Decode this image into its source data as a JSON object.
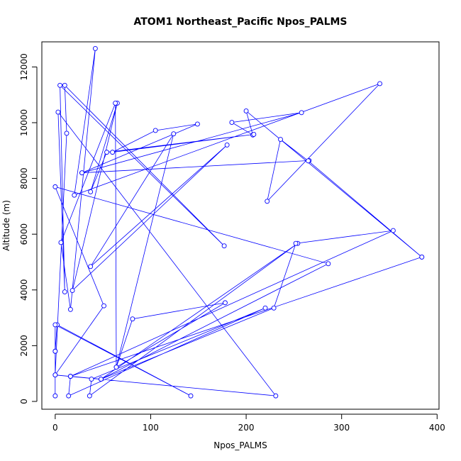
{
  "chart_data": {
    "type": "line",
    "title": "ATOM1 Northeast_Pacific Npos_PALMS",
    "xlabel": "Npos_PALMS",
    "ylabel": "Altitude (m)",
    "xlim": [
      -14,
      402
    ],
    "ylim": [
      -280,
      12900
    ],
    "x_ticks": [
      0,
      100,
      200,
      300,
      400
    ],
    "y_ticks": [
      0,
      2000,
      4000,
      6000,
      8000,
      10000,
      12000
    ],
    "line_color": "#0000ff",
    "marker": "open-circle",
    "series": [
      {
        "points": [
          [
            0,
            200
          ],
          [
            0,
            1800
          ],
          [
            2,
            2750
          ],
          [
            142,
            200
          ],
          [
            0,
            2750
          ],
          [
            0,
            1800
          ],
          [
            0,
            950
          ],
          [
            231,
            200
          ],
          [
            3,
            10380
          ],
          [
            10,
            3930
          ],
          [
            5,
            11340
          ],
          [
            177,
            5580
          ],
          [
            10,
            11340
          ],
          [
            12,
            9620
          ],
          [
            0,
            950
          ],
          [
            51,
            3430
          ],
          [
            0,
            7700
          ],
          [
            286,
            4940
          ],
          [
            48,
            800
          ],
          [
            254,
            5670
          ],
          [
            36,
            200
          ],
          [
            38,
            800
          ],
          [
            220,
            3350
          ],
          [
            14,
            200
          ],
          [
            16,
            900
          ],
          [
            48,
            800
          ],
          [
            229,
            3350
          ],
          [
            252,
            5670
          ],
          [
            354,
            6130
          ],
          [
            16,
            900
          ],
          [
            384,
            5180
          ],
          [
            200,
            10420
          ],
          [
            207,
            9560
          ],
          [
            185,
            10010
          ],
          [
            258,
            10360
          ],
          [
            28,
            8200
          ],
          [
            266,
            8640
          ],
          [
            28,
            8200
          ],
          [
            149,
            9950
          ],
          [
            105,
            9720
          ],
          [
            60,
            8940
          ],
          [
            208,
            9580
          ],
          [
            54,
            8940
          ],
          [
            37,
            7520
          ],
          [
            65,
            10700
          ],
          [
            18,
            3980
          ],
          [
            180,
            9200
          ],
          [
            37,
            4840
          ],
          [
            124,
            9600
          ],
          [
            64,
            1230
          ],
          [
            81,
            2960
          ],
          [
            178,
            3540
          ],
          [
            64,
            1230
          ],
          [
            63,
            10700
          ],
          [
            6,
            5700
          ],
          [
            16,
            3300
          ],
          [
            42,
            12660
          ],
          [
            20,
            7400
          ],
          [
            340,
            11400
          ],
          [
            222,
            7180
          ],
          [
            236,
            9400
          ],
          [
            265,
            8630
          ],
          [
            384,
            5180
          ]
        ]
      }
    ]
  }
}
